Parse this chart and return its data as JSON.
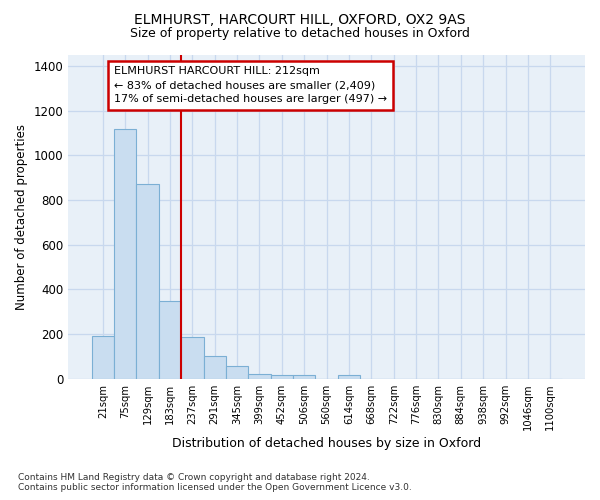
{
  "title1": "ELMHURST, HARCOURT HILL, OXFORD, OX2 9AS",
  "title2": "Size of property relative to detached houses in Oxford",
  "xlabel": "Distribution of detached houses by size in Oxford",
  "ylabel": "Number of detached properties",
  "footnote": "Contains HM Land Registry data © Crown copyright and database right 2024.\nContains public sector information licensed under the Open Government Licence v3.0.",
  "bin_labels": [
    "21sqm",
    "75sqm",
    "129sqm",
    "183sqm",
    "237sqm",
    "291sqm",
    "345sqm",
    "399sqm",
    "452sqm",
    "506sqm",
    "560sqm",
    "614sqm",
    "668sqm",
    "722sqm",
    "776sqm",
    "830sqm",
    "884sqm",
    "938sqm",
    "992sqm",
    "1046sqm",
    "1100sqm"
  ],
  "bar_heights": [
    193,
    1120,
    870,
    350,
    185,
    100,
    55,
    22,
    18,
    18,
    0,
    15,
    0,
    0,
    0,
    0,
    0,
    0,
    0,
    0,
    0
  ],
  "bar_color": "#c9ddf0",
  "bar_edge_color": "#7bafd4",
  "grid_color": "#c8d8ee",
  "vline_x": 3.5,
  "vline_color": "#cc0000",
  "annotation_text": "ELMHURST HARCOURT HILL: 212sqm\n← 83% of detached houses are smaller (2,409)\n17% of semi-detached houses are larger (497) →",
  "ylim": [
    0,
    1450
  ],
  "yticks": [
    0,
    200,
    400,
    600,
    800,
    1000,
    1200,
    1400
  ],
  "background_color": "#ffffff",
  "plot_background": "#e8f0f8"
}
